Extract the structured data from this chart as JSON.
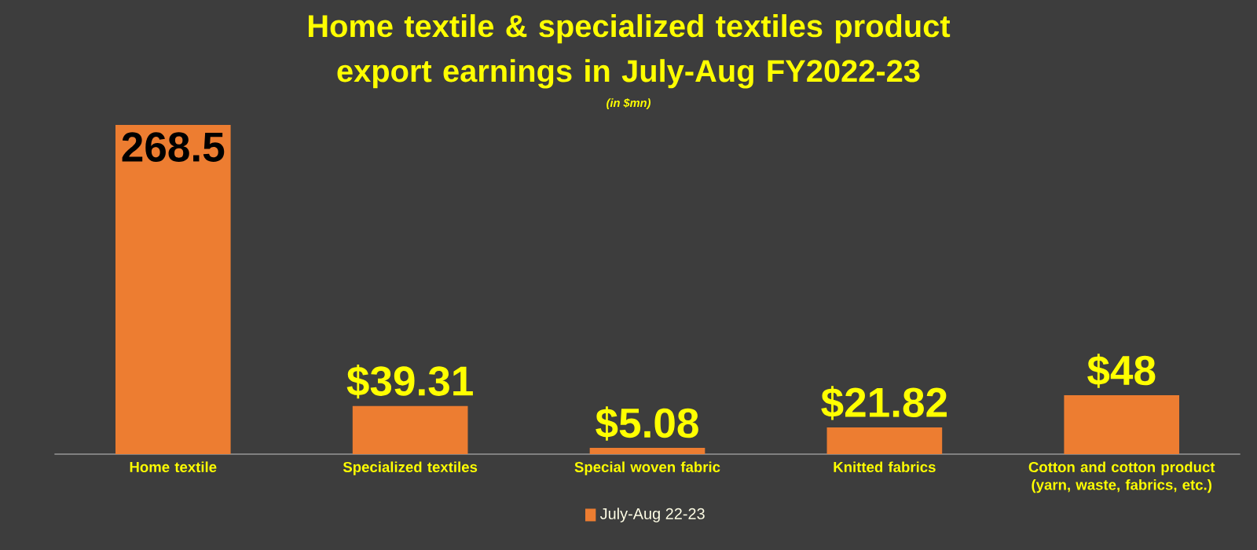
{
  "chart_data": {
    "type": "bar",
    "title": "Home textile & specialized textiles product export earnings in July-Aug FY2022-23",
    "subtitle": "(in $mn)",
    "categories": [
      "Home textile",
      "Specialized textiles",
      "Special woven fabric",
      "Knitted fabrics",
      "Cotton and cotton product (yarn, waste, fabrics, etc.)"
    ],
    "series": [
      {
        "name": "July-Aug 22-23",
        "color": "#ed7d31",
        "values": [
          268.5,
          39.31,
          5.08,
          21.82,
          48
        ],
        "value_labels": [
          "268.5",
          "$39.31",
          "$5.08",
          "$21.82",
          "$48"
        ]
      }
    ],
    "legend": "bottom"
  }
}
